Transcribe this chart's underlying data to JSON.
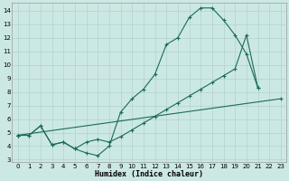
{
  "background_color": "#cce8e4",
  "grid_color": "#aacccc",
  "line_color": "#1a6b5a",
  "xlim": [
    -0.5,
    23.5
  ],
  "ylim": [
    2.8,
    14.6
  ],
  "yticks": [
    3,
    4,
    5,
    6,
    7,
    8,
    9,
    10,
    11,
    12,
    13,
    14
  ],
  "xticks": [
    0,
    1,
    2,
    3,
    4,
    5,
    6,
    7,
    8,
    9,
    10,
    11,
    12,
    13,
    14,
    15,
    16,
    17,
    18,
    19,
    20,
    21,
    22,
    23
  ],
  "xlabel": "Humidex (Indice chaleur)",
  "line1_x": [
    0,
    1,
    2,
    3,
    4,
    5,
    6,
    7,
    8,
    9,
    10,
    11,
    12,
    13,
    14,
    15,
    16,
    17,
    18,
    19,
    20,
    21
  ],
  "line1_y": [
    4.8,
    4.8,
    5.5,
    4.1,
    4.3,
    3.8,
    3.5,
    3.3,
    4.0,
    6.5,
    7.5,
    8.2,
    9.3,
    11.5,
    12.0,
    13.5,
    14.2,
    14.2,
    13.3,
    12.2,
    10.8,
    8.3
  ],
  "line2_x": [
    0,
    1,
    2,
    3,
    4,
    5,
    6,
    7,
    8,
    9,
    10,
    11,
    12,
    13,
    14,
    15,
    16,
    17,
    18,
    19,
    20,
    21
  ],
  "line2_y": [
    4.8,
    4.8,
    5.5,
    4.1,
    4.3,
    3.8,
    4.3,
    4.5,
    4.3,
    4.7,
    5.2,
    5.7,
    6.2,
    6.7,
    7.2,
    7.7,
    8.2,
    8.7,
    9.2,
    9.7,
    12.2,
    8.3
  ],
  "line3_x": [
    0,
    23
  ],
  "line3_y": [
    4.8,
    7.5
  ]
}
